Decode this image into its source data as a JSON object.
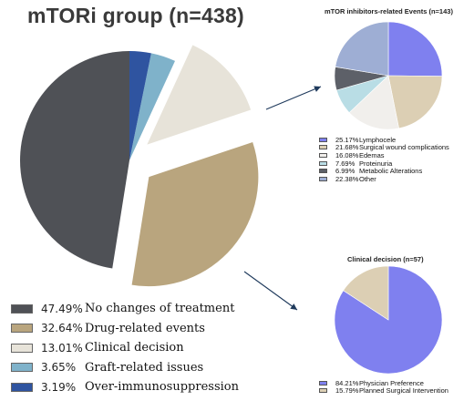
{
  "title": "mTORi group (n=438)",
  "colors": {
    "no_change": "#4f5156",
    "drug_related": "#b9a57e",
    "clinical": "#e7e3d9",
    "graft": "#7fb2ca",
    "immuno": "#2f54a0",
    "lymphocele": "#7f80ef",
    "surgical": "#dccfb4",
    "edemas": "#f1efec",
    "proteinuria": "#b9dde5",
    "metabolic": "#5d6068",
    "other": "#9eaed4",
    "physician": "#7f80ef",
    "planned": "#dccfb4",
    "arrow": "#1f3a5c"
  },
  "chart_data": [
    {
      "type": "pie",
      "title": "mTORi group (n=438)",
      "slices": [
        {
          "pct_label": "47.49%",
          "label": "No changes of treatment",
          "value": 47.49,
          "color_key": "no_change"
        },
        {
          "pct_label": "32.64%",
          "label": "Drug-related events",
          "value": 32.64,
          "color_key": "drug_related"
        },
        {
          "pct_label": "13.01%",
          "label": "Clinical decision",
          "value": 13.01,
          "color_key": "clinical"
        },
        {
          "pct_label": "3.65%",
          "label": "Graft-related issues",
          "value": 3.65,
          "color_key": "graft"
        },
        {
          "pct_label": "3.19%",
          "label": "Over-immunosuppression",
          "value": 3.19,
          "color_key": "immuno"
        }
      ],
      "legend_position": "bottom-left"
    },
    {
      "type": "pie",
      "title": "mTOR inhibitors-related Events (n=143)",
      "slices": [
        {
          "pct_label": "25.17%",
          "label": "Lymphocele",
          "value": 25.17,
          "color_key": "lymphocele"
        },
        {
          "pct_label": "21.68%",
          "label": "Surgical wound complications",
          "value": 21.68,
          "color_key": "surgical"
        },
        {
          "pct_label": "16.08%",
          "label": "Edemas",
          "value": 16.08,
          "color_key": "edemas"
        },
        {
          "pct_label": "7.69%",
          "label": "Proteinuria",
          "value": 7.69,
          "color_key": "proteinuria"
        },
        {
          "pct_label": "6.99%",
          "label": "Metabolic Alterations",
          "value": 6.99,
          "color_key": "metabolic"
        },
        {
          "pct_label": "22.38%",
          "label": "Other",
          "value": 22.38,
          "color_key": "other"
        }
      ],
      "legend_position": "bottom"
    },
    {
      "type": "pie",
      "title": "Clinical decision (n=57)",
      "slices": [
        {
          "pct_label": "84.21%",
          "label": "Physician Preference",
          "value": 84.21,
          "color_key": "physician"
        },
        {
          "pct_label": "15.79%",
          "label": "Planned Surgical Intervention",
          "value": 15.79,
          "color_key": "planned"
        }
      ],
      "legend_position": "bottom"
    }
  ]
}
